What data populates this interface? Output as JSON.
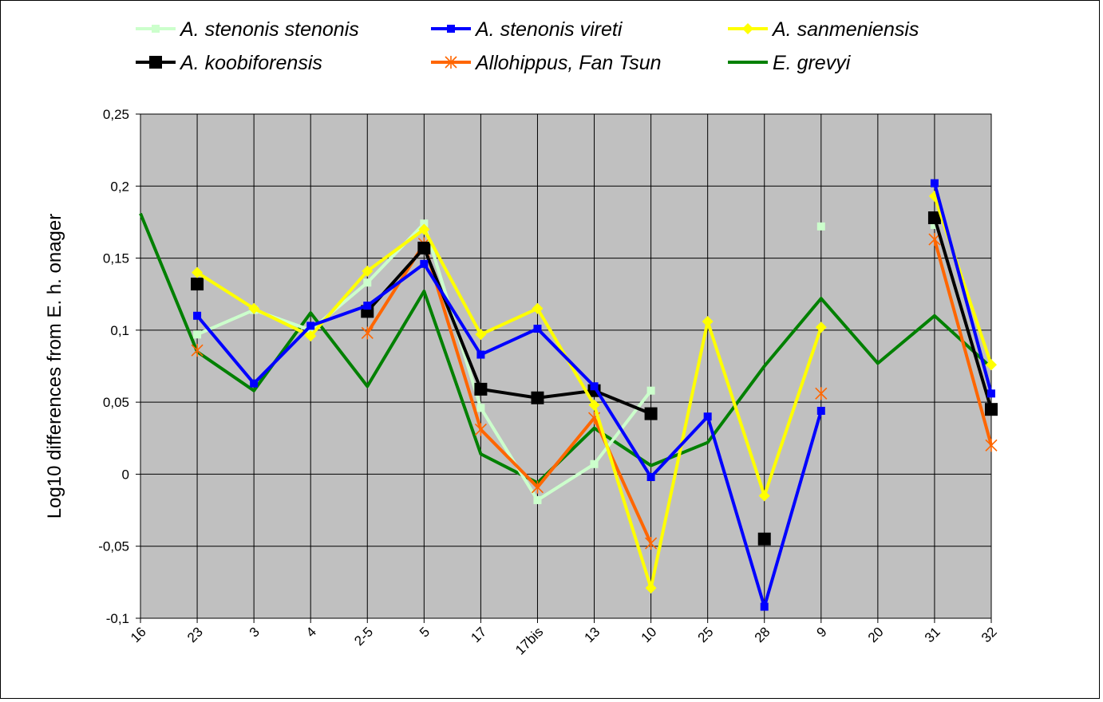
{
  "chart_data": {
    "type": "line",
    "title": "",
    "xlabel": "",
    "ylabel": "Log10 differences from E. h. onager",
    "ylim": [
      -0.1,
      0.25
    ],
    "yticks": [
      -0.1,
      -0.05,
      0,
      0.05,
      0.1,
      0.15,
      0.2,
      0.25
    ],
    "ytick_labels": [
      "-0,1",
      "-0,05",
      "0",
      "0,05",
      "0,1",
      "0,15",
      "0,2",
      "0,25"
    ],
    "categories": [
      "16",
      "23",
      "3",
      "4",
      "2-5",
      "5",
      "17",
      "17bis",
      "13",
      "10",
      "25",
      "28",
      "9",
      "20",
      "31",
      "32"
    ],
    "grid": true,
    "plot_background": "#c0c0c0",
    "legend_position": "top",
    "series": [
      {
        "name": "A. stenonis stenonis",
        "color": "#ccffcc",
        "marker": "square",
        "values": [
          null,
          0.097,
          0.114,
          0.1,
          0.133,
          0.174,
          0.046,
          -0.018,
          0.007,
          0.058,
          null,
          null,
          0.172,
          null,
          0.173,
          null
        ]
      },
      {
        "name": "A. stenonis vireti",
        "color": "#0000ff",
        "marker": "square",
        "values": [
          null,
          0.11,
          0.063,
          0.103,
          0.117,
          0.146,
          0.083,
          0.101,
          0.061,
          -0.002,
          0.04,
          -0.092,
          0.044,
          null,
          0.202,
          0.056
        ]
      },
      {
        "name": "A. sanmeniensis",
        "color": "#ffff00",
        "marker": "diamond",
        "values": [
          null,
          0.14,
          0.115,
          0.096,
          0.141,
          0.17,
          0.097,
          0.115,
          0.048,
          -0.079,
          0.106,
          -0.015,
          0.102,
          null,
          0.193,
          0.076
        ]
      },
      {
        "name": "A. koobiforensis",
        "color": "#000000",
        "marker": "bigsquare",
        "values": [
          null,
          0.132,
          null,
          null,
          0.113,
          0.157,
          0.059,
          0.053,
          0.058,
          0.042,
          null,
          -0.045,
          null,
          null,
          0.178,
          0.045
        ]
      },
      {
        "name": "Allohippus, Fan Tsun",
        "color": "#ff6600",
        "marker": "star",
        "values": [
          null,
          0.086,
          null,
          null,
          0.098,
          0.16,
          0.031,
          -0.009,
          0.039,
          -0.048,
          null,
          null,
          0.056,
          null,
          0.163,
          0.02
        ]
      },
      {
        "name": "E. grevyi",
        "color": "#008000",
        "marker": "none",
        "values": [
          0.181,
          0.085,
          0.058,
          0.112,
          0.061,
          0.127,
          0.014,
          -0.006,
          0.032,
          0.006,
          0.022,
          0.075,
          0.122,
          0.077,
          0.11,
          0.074
        ]
      }
    ]
  }
}
